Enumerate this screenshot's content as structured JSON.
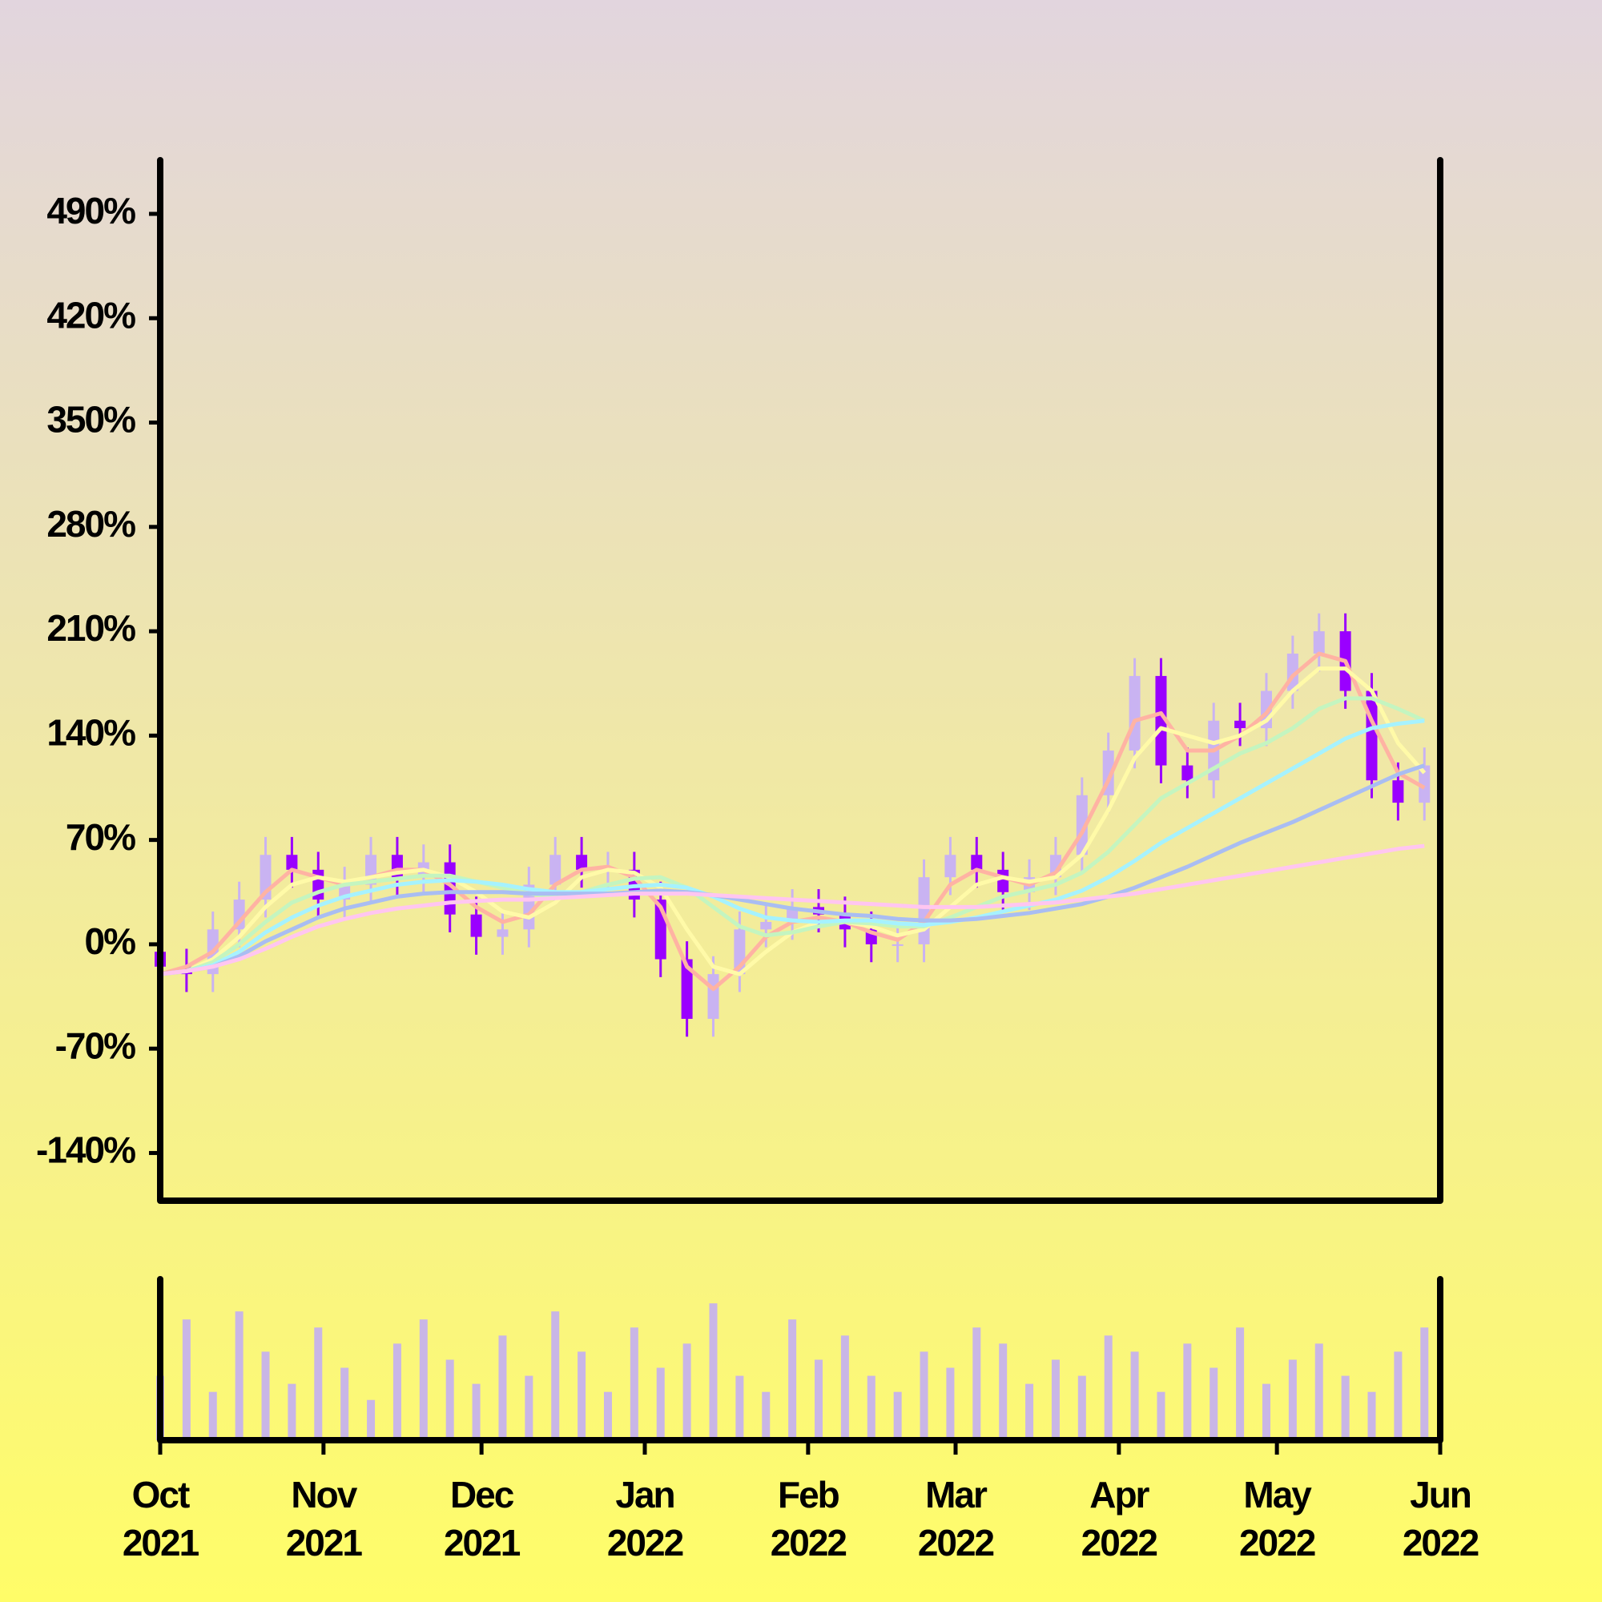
{
  "chart_data": [
    {
      "type": "candlestick",
      "x": [
        0,
        5,
        10,
        15,
        20,
        25,
        30,
        35,
        40,
        45,
        50,
        55,
        60,
        65,
        70,
        75,
        80,
        85,
        90,
        95,
        100,
        105,
        110,
        115,
        120,
        125,
        130,
        135,
        140,
        145,
        150,
        155,
        160,
        165,
        170,
        175,
        180,
        185,
        190,
        195,
        200,
        205,
        210,
        215,
        220,
        225,
        230,
        235,
        240
      ],
      "open": [
        -5,
        -15,
        -20,
        10,
        30,
        60,
        50,
        30,
        40,
        60,
        45,
        55,
        20,
        5,
        10,
        40,
        60,
        50,
        50,
        30,
        -10,
        -50,
        -20,
        10,
        15,
        25,
        20,
        10,
        0,
        0,
        45,
        60,
        50,
        35,
        45,
        60,
        100,
        130,
        180,
        120,
        110,
        150,
        145,
        170,
        195,
        210,
        170,
        110,
        95
      ],
      "high": [
        7,
        -3,
        22,
        42,
        72,
        72,
        62,
        52,
        72,
        72,
        67,
        67,
        32,
        22,
        52,
        72,
        72,
        62,
        62,
        42,
        2,
        -8,
        22,
        27,
        37,
        37,
        32,
        22,
        12,
        57,
        72,
        72,
        62,
        57,
        72,
        112,
        142,
        192,
        192,
        132,
        162,
        162,
        182,
        207,
        222,
        222,
        182,
        122,
        132
      ],
      "low": [
        -27,
        -32,
        -32,
        -2,
        18,
        38,
        18,
        18,
        28,
        33,
        33,
        8,
        -7,
        -7,
        -2,
        28,
        38,
        38,
        18,
        -22,
        -62,
        -62,
        -32,
        -2,
        3,
        8,
        -2,
        -12,
        -12,
        -12,
        33,
        38,
        23,
        23,
        33,
        48,
        88,
        118,
        108,
        98,
        98,
        133,
        133,
        158,
        183,
        158,
        98,
        83,
        83
      ],
      "close": [
        -15,
        -20,
        10,
        30,
        60,
        50,
        30,
        40,
        60,
        45,
        55,
        20,
        5,
        10,
        40,
        60,
        50,
        50,
        30,
        -10,
        -50,
        -20,
        10,
        15,
        25,
        20,
        10,
        0,
        0,
        45,
        60,
        50,
        35,
        45,
        60,
        100,
        130,
        180,
        120,
        110,
        150,
        145,
        170,
        195,
        210,
        170,
        110,
        95,
        120
      ],
      "up_color": "#c9b3f2",
      "down_color": "#9a00ff",
      "series": [
        {
          "color": "#ffb3a3",
          "values": [
            -20,
            -15,
            -5,
            15,
            35,
            50,
            45,
            40,
            45,
            50,
            50,
            40,
            25,
            15,
            20,
            40,
            50,
            52,
            45,
            25,
            -15,
            -30,
            -15,
            5,
            15,
            18,
            15,
            8,
            3,
            15,
            40,
            50,
            45,
            40,
            48,
            75,
            110,
            150,
            155,
            130,
            130,
            140,
            155,
            180,
            195,
            190,
            150,
            115,
            105
          ]
        },
        {
          "color": "#fffaa8",
          "values": [
            -20,
            -18,
            -10,
            5,
            25,
            40,
            45,
            42,
            45,
            48,
            50,
            45,
            35,
            22,
            18,
            28,
            45,
            50,
            48,
            38,
            10,
            -15,
            -20,
            -5,
            8,
            15,
            15,
            12,
            6,
            10,
            25,
            40,
            45,
            42,
            45,
            60,
            90,
            125,
            145,
            140,
            135,
            140,
            150,
            170,
            185,
            185,
            170,
            135,
            115
          ]
        },
        {
          "color": "#c4f5c0",
          "values": [
            -20,
            -18,
            -12,
            0,
            15,
            28,
            35,
            40,
            42,
            44,
            46,
            46,
            42,
            38,
            34,
            32,
            35,
            40,
            44,
            45,
            38,
            25,
            12,
            6,
            8,
            12,
            15,
            14,
            12,
            12,
            18,
            25,
            32,
            36,
            40,
            48,
            62,
            80,
            98,
            108,
            118,
            128,
            135,
            145,
            158,
            165,
            165,
            158,
            150
          ]
        },
        {
          "color": "#a6f2ff",
          "values": [
            -20,
            -18,
            -14,
            -5,
            8,
            18,
            26,
            32,
            36,
            40,
            42,
            43,
            42,
            40,
            37,
            35,
            35,
            37,
            39,
            40,
            38,
            32,
            24,
            18,
            16,
            15,
            16,
            16,
            14,
            13,
            15,
            18,
            22,
            26,
            30,
            36,
            45,
            56,
            68,
            78,
            88,
            98,
            108,
            118,
            128,
            138,
            145,
            148,
            150
          ]
        },
        {
          "color": "#a9bdf2",
          "values": [
            -20,
            -18,
            -15,
            -8,
            2,
            10,
            18,
            24,
            28,
            32,
            34,
            35,
            35,
            35,
            34,
            34,
            34,
            34,
            35,
            36,
            35,
            33,
            30,
            27,
            24,
            22,
            20,
            19,
            17,
            16,
            16,
            17,
            19,
            21,
            24,
            27,
            32,
            38,
            45,
            52,
            60,
            68,
            75,
            82,
            90,
            98,
            106,
            114,
            120
          ]
        },
        {
          "color": "#ffc6f0",
          "values": [
            -20,
            -18,
            -15,
            -10,
            -3,
            5,
            12,
            17,
            21,
            24,
            26,
            28,
            29,
            30,
            30,
            31,
            32,
            33,
            34,
            34,
            34,
            33,
            32,
            31,
            30,
            29,
            28,
            27,
            26,
            25,
            25,
            25,
            26,
            27,
            28,
            30,
            32,
            34,
            37,
            40,
            43,
            46,
            49,
            52,
            55,
            58,
            61,
            64,
            66
          ]
        }
      ],
      "ylim": [
        -172,
        526
      ],
      "yticks": [
        {
          "value": -140,
          "label": "-140%"
        },
        {
          "value": -70,
          "label": "-70%"
        },
        {
          "value": 0,
          "label": "0%"
        },
        {
          "value": 70,
          "label": "70%"
        },
        {
          "value": 140,
          "label": "140%"
        },
        {
          "value": 210,
          "label": "210%"
        },
        {
          "value": 280,
          "label": "280%"
        },
        {
          "value": 350,
          "label": "350%"
        },
        {
          "value": 420,
          "label": "420%"
        },
        {
          "value": 490,
          "label": "490%"
        }
      ]
    },
    {
      "type": "bar",
      "values": [
        40,
        75,
        30,
        80,
        55,
        35,
        70,
        45,
        25,
        60,
        75,
        50,
        35,
        65,
        40,
        80,
        55,
        30,
        70,
        45,
        60,
        85,
        40,
        30,
        75,
        50,
        65,
        40,
        30,
        55,
        45,
        70,
        60,
        35,
        50,
        40,
        65,
        55,
        30,
        60,
        45,
        70,
        35,
        50,
        60,
        40,
        30,
        55,
        70
      ],
      "color": "#c9b6e6",
      "ylim": [
        0,
        100
      ],
      "xlim": [
        0,
        243
      ],
      "xticks": [
        {
          "value": 0,
          "label": "Oct\n2021"
        },
        {
          "value": 31,
          "label": "Nov\n2021"
        },
        {
          "value": 61,
          "label": "Dec\n2021"
        },
        {
          "value": 92,
          "label": "Jan\n2022"
        },
        {
          "value": 123,
          "label": "Feb\n2022"
        },
        {
          "value": 151,
          "label": "Mar\n2022"
        },
        {
          "value": 182,
          "label": "Apr\n2022"
        },
        {
          "value": 212,
          "label": "May\n2022"
        },
        {
          "value": 243,
          "label": "Jun\n2022"
        }
      ]
    }
  ]
}
